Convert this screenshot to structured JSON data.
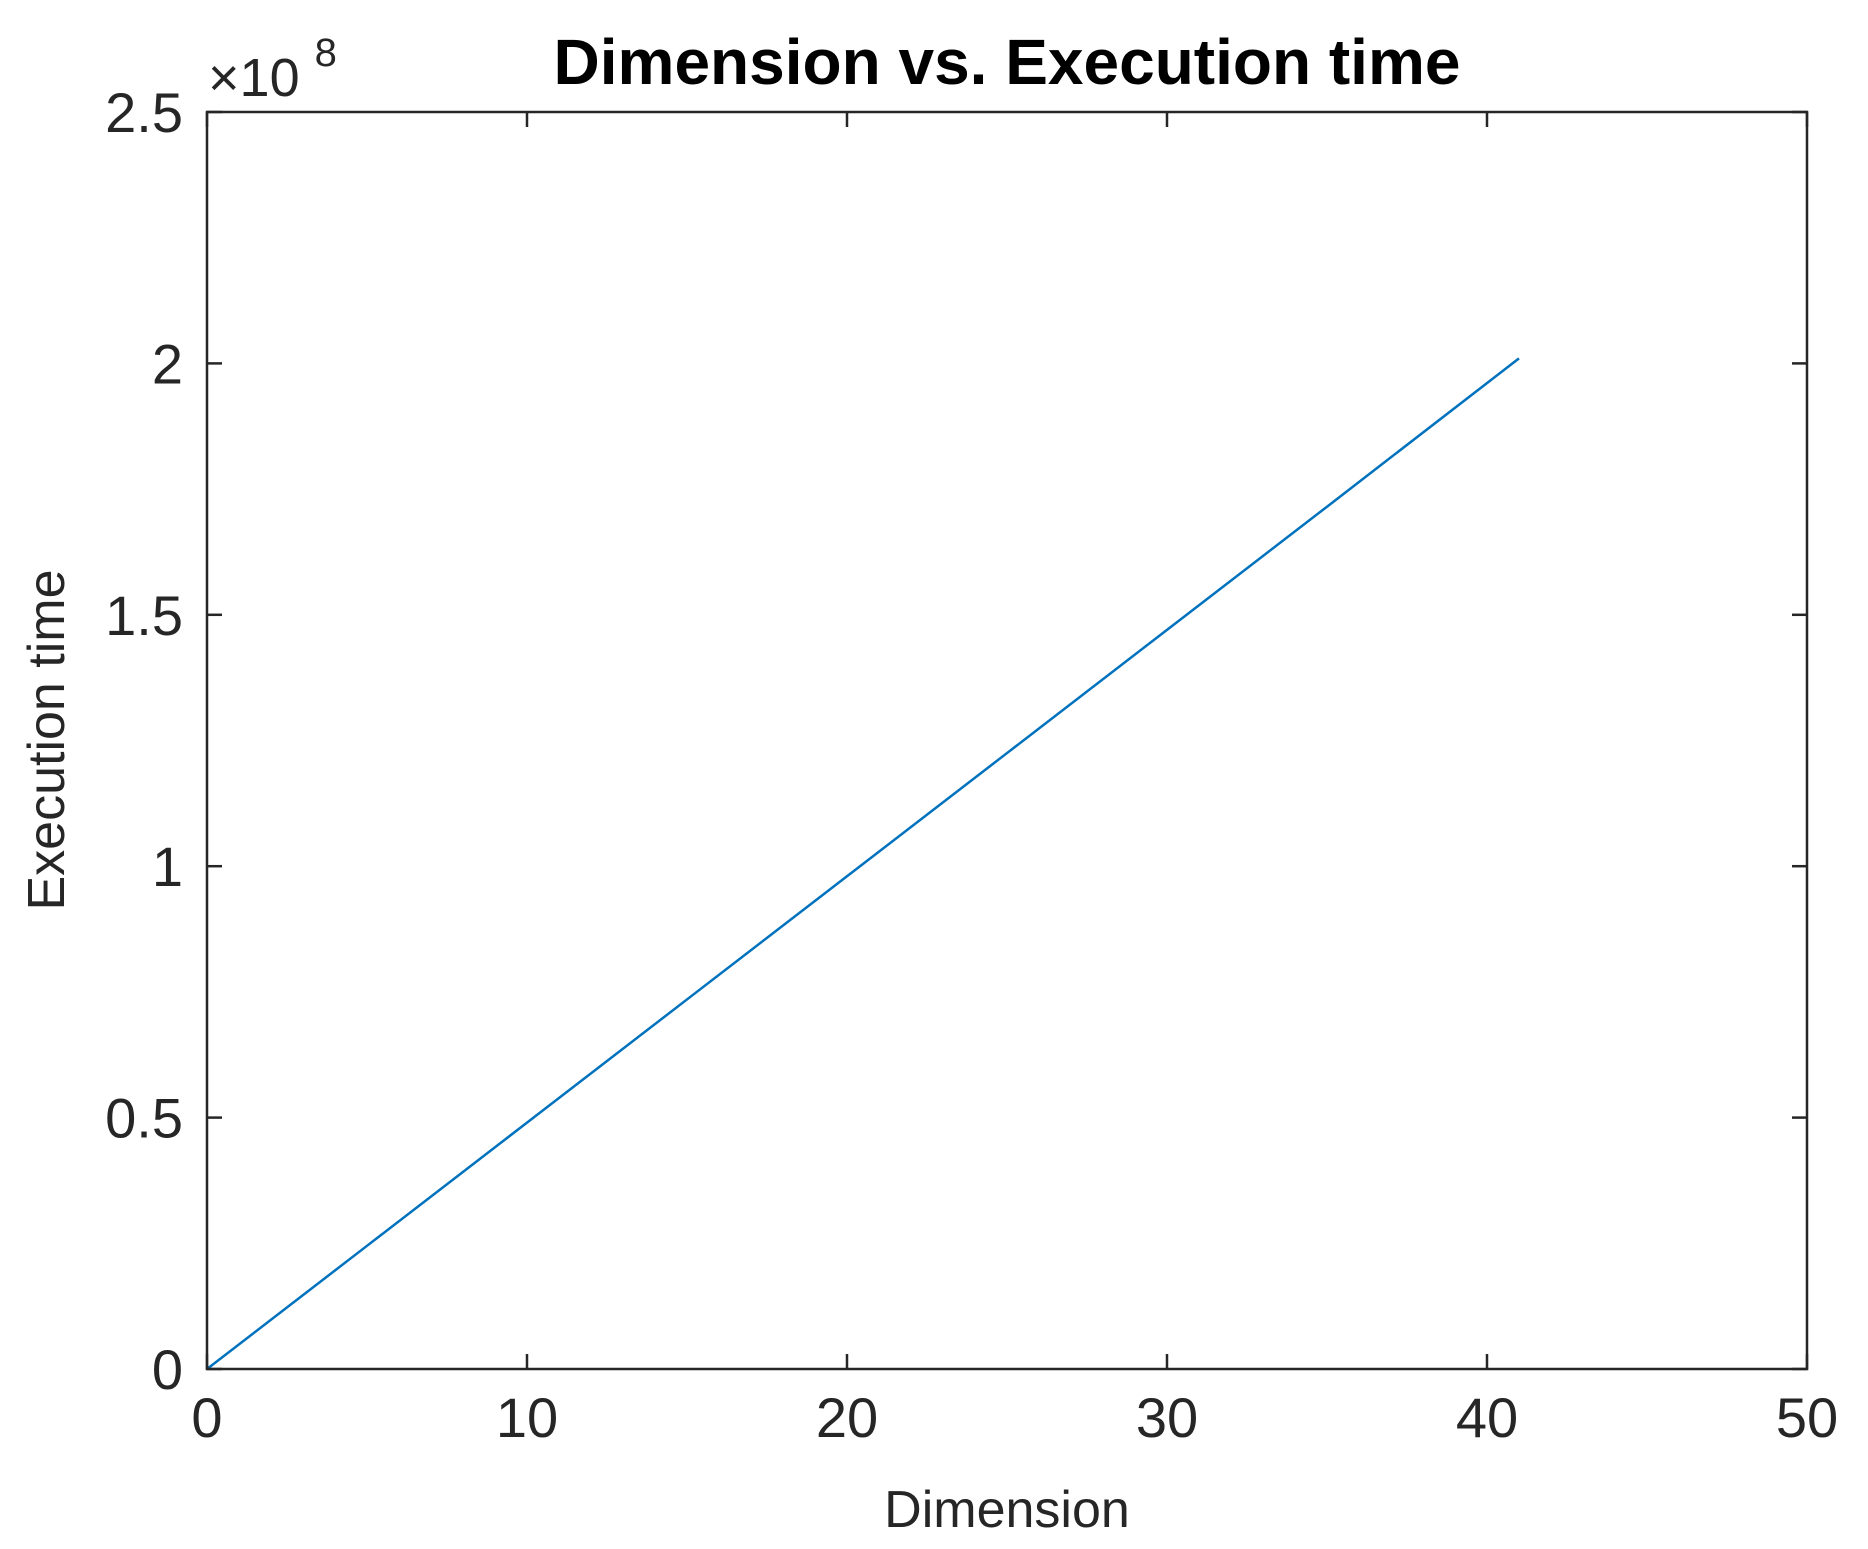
{
  "chart_data": {
    "type": "line",
    "title": "Dimension vs. Execution time",
    "xlabel": "Dimension",
    "ylabel": "Execution time",
    "xlim": [
      0,
      50
    ],
    "ylim": [
      0,
      2.5
    ],
    "y_multiplier_label": {
      "times": "×10",
      "exponent": "8"
    },
    "x_ticks": [
      0,
      10,
      20,
      30,
      40,
      50
    ],
    "x_tick_labels": [
      "0",
      "10",
      "20",
      "30",
      "40",
      "50"
    ],
    "y_ticks": [
      0,
      0.5,
      1,
      1.5,
      2,
      2.5
    ],
    "y_tick_labels": [
      "0",
      "0.5",
      "1",
      "1.5",
      "2",
      "2.5"
    ],
    "grid": false,
    "series": [
      {
        "color": "#0072BD",
        "x": [
          0,
          5,
          10,
          15,
          20,
          25,
          30,
          35,
          41
        ],
        "y": [
          0,
          0.245,
          0.49,
          0.735,
          0.98,
          1.225,
          1.47,
          1.715,
          2.01
        ]
      }
    ]
  }
}
